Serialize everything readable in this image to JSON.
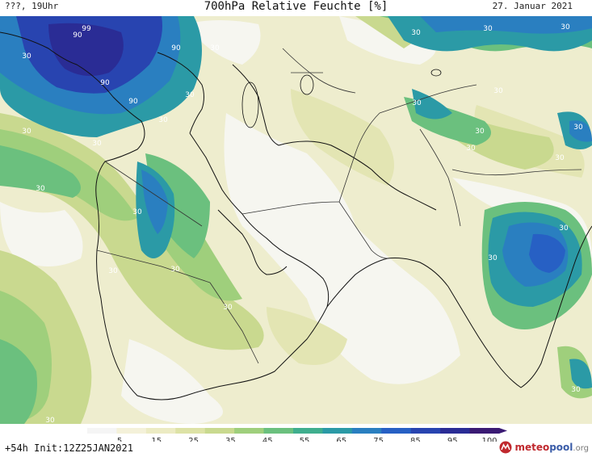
{
  "header": {
    "left_text": "???, 19Uhr",
    "title": "700hPa Relative Feuchte [%]",
    "date": "27. Januar 2021"
  },
  "footer": {
    "run_info": "+54h Init:12Z25JAN2021",
    "logo_part1": "meteo",
    "logo_part2": "pool",
    "logo_part3": ".org"
  },
  "legend": {
    "tick_labels": [
      "5",
      "15",
      "25",
      "35",
      "45",
      "55",
      "65",
      "75",
      "85",
      "95",
      "100"
    ],
    "colors": [
      "#f5f5f5",
      "#f4f1d9",
      "#ecebc3",
      "#dde2a6",
      "#c9d98f",
      "#9fcf7c",
      "#6bc07e",
      "#3fae8e",
      "#2b9aa6",
      "#2a7fc0",
      "#2760c4",
      "#2844b0",
      "#2a2c95",
      "#3a1a73"
    ]
  },
  "map": {
    "contour_labels": [
      "99",
      "90",
      "90",
      "90",
      "90",
      "30",
      "30",
      "30",
      "30",
      "30",
      "30",
      "30",
      "30",
      "30",
      "30",
      "30",
      "30",
      "30",
      "30",
      "30",
      "30",
      "30",
      "30",
      "30",
      "30",
      "30",
      "30",
      "30",
      "30"
    ]
  }
}
